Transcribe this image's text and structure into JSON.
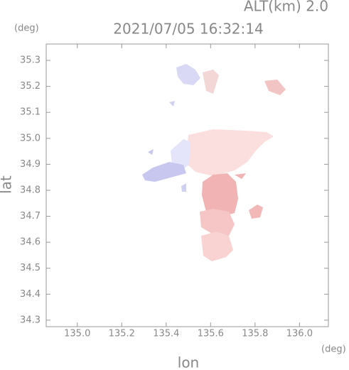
{
  "chart_data": {
    "type": "map",
    "title": "2021/07/05 16:32:14",
    "subtitle": "ALT(km) 2.0",
    "x_label": "lon",
    "y_label": "lat",
    "x_unit": "(deg)",
    "y_unit": "(deg)",
    "xlim": [
      134.86,
      136.13
    ],
    "ylim": [
      34.275,
      35.363
    ],
    "xticks": [
      {
        "value": 135,
        "label": "135.0"
      },
      135.2,
      135.4,
      135.6,
      135.8,
      {
        "value": 136,
        "label": "136.0"
      }
    ],
    "yticks": [
      34.3,
      34.4,
      34.5,
      34.6,
      34.7,
      34.8,
      34.9,
      {
        "value": 35,
        "label": "35.0"
      },
      35.1,
      35.2,
      35.3
    ]
  }
}
